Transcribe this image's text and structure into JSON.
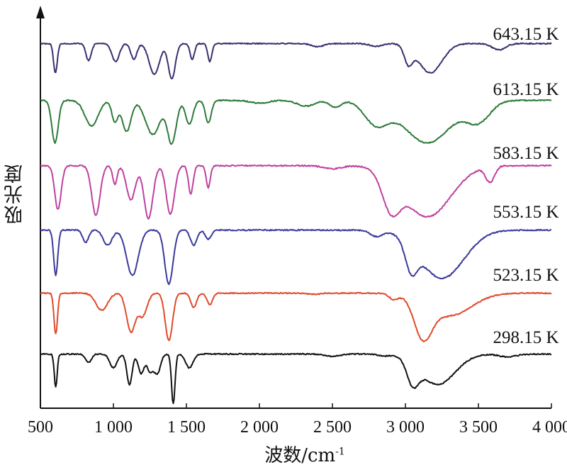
{
  "chart_data": {
    "type": "line",
    "xlabel_main": "波数/cm",
    "xlabel_sup": "-1",
    "ylabel": "吸光度",
    "xlim": [
      500,
      4000
    ],
    "x_ticks": [
      500,
      1000,
      1500,
      2000,
      2500,
      3000,
      3500,
      4000
    ],
    "x_tick_labels": [
      "500",
      "1 000",
      "1 500",
      "2 000",
      "2 500",
      "3 000",
      "3 500",
      "4 000"
    ],
    "y_ticks": false,
    "grid": false,
    "series_label_placement": "right, above each curve",
    "series": [
      {
        "name": "643.15 K",
        "color": "#3a2f6e",
        "baseline": 0.02,
        "bands": [
          [
            603,
            0.55,
            13
          ],
          [
            830,
            0.32,
            18
          ],
          [
            1015,
            0.34,
            25
          ],
          [
            1140,
            0.3,
            20
          ],
          [
            1280,
            0.58,
            35
          ],
          [
            1400,
            0.66,
            24
          ],
          [
            1540,
            0.3,
            15
          ],
          [
            1660,
            0.34,
            14
          ],
          [
            2400,
            0.06,
            40
          ],
          [
            2800,
            0.05,
            40
          ],
          [
            3020,
            0.33,
            28
          ],
          [
            3170,
            0.55,
            80
          ],
          [
            3640,
            0.12,
            45
          ]
        ]
      },
      {
        "name": "613.15 K",
        "color": "#2e7a3a",
        "baseline": 0.02,
        "bands": [
          [
            600,
            0.75,
            22
          ],
          [
            850,
            0.45,
            45
          ],
          [
            1010,
            0.38,
            20
          ],
          [
            1090,
            0.55,
            30
          ],
          [
            1270,
            0.6,
            50
          ],
          [
            1400,
            0.75,
            30
          ],
          [
            1520,
            0.42,
            25
          ],
          [
            1650,
            0.4,
            20
          ],
          [
            2000,
            0.05,
            60
          ],
          [
            2320,
            0.1,
            60
          ],
          [
            2520,
            0.12,
            40
          ],
          [
            2800,
            0.4,
            80
          ],
          [
            3150,
            0.75,
            160
          ],
          [
            3500,
            0.35,
            80
          ]
        ]
      },
      {
        "name": "583.15 K",
        "color": "#c040a0",
        "baseline": 0.02,
        "bands": [
          [
            620,
            0.7,
            22
          ],
          [
            880,
            0.8,
            28
          ],
          [
            1010,
            0.3,
            15
          ],
          [
            1120,
            0.55,
            30
          ],
          [
            1240,
            0.85,
            30
          ],
          [
            1390,
            0.78,
            28
          ],
          [
            1530,
            0.45,
            16
          ],
          [
            1650,
            0.35,
            14
          ],
          [
            2500,
            0.05,
            60
          ],
          [
            2900,
            0.55,
            60
          ],
          [
            3150,
            0.82,
            160
          ],
          [
            3580,
            0.25,
            30
          ]
        ]
      },
      {
        "name": "553.15 K",
        "color": "#3a3a9a",
        "baseline": 0.02,
        "bands": [
          [
            605,
            0.75,
            14
          ],
          [
            810,
            0.2,
            20
          ],
          [
            960,
            0.25,
            30
          ],
          [
            1130,
            0.75,
            40
          ],
          [
            1380,
            0.9,
            28
          ],
          [
            1550,
            0.25,
            22
          ],
          [
            1650,
            0.15,
            20
          ],
          [
            2800,
            0.1,
            40
          ],
          [
            3040,
            0.45,
            40
          ],
          [
            3250,
            0.8,
            150
          ]
        ]
      },
      {
        "name": "523.15 K",
        "color": "#e04a2a",
        "baseline": 0.02,
        "bands": [
          [
            605,
            0.72,
            12
          ],
          [
            920,
            0.3,
            40
          ],
          [
            1120,
            0.68,
            30
          ],
          [
            1200,
            0.4,
            30
          ],
          [
            1380,
            0.84,
            25
          ],
          [
            1550,
            0.25,
            20
          ],
          [
            1660,
            0.2,
            20
          ],
          [
            2380,
            0.02,
            40
          ],
          [
            2920,
            0.1,
            30
          ],
          [
            3120,
            0.65,
            60
          ],
          [
            3300,
            0.4,
            150
          ]
        ]
      },
      {
        "name": "298.15 K",
        "color": "#111111",
        "baseline": 0.02,
        "bands": [
          [
            605,
            0.6,
            10
          ],
          [
            830,
            0.15,
            20
          ],
          [
            1000,
            0.25,
            25
          ],
          [
            1110,
            0.55,
            18
          ],
          [
            1190,
            0.35,
            20
          ],
          [
            1250,
            0.3,
            20
          ],
          [
            1300,
            0.35,
            22
          ],
          [
            1410,
            0.9,
            12
          ],
          [
            1520,
            0.25,
            25
          ],
          [
            2500,
            0.04,
            50
          ],
          [
            2850,
            0.03,
            40
          ],
          [
            3050,
            0.4,
            40
          ],
          [
            3220,
            0.55,
            120
          ],
          [
            3700,
            0.05,
            60
          ]
        ]
      }
    ]
  }
}
